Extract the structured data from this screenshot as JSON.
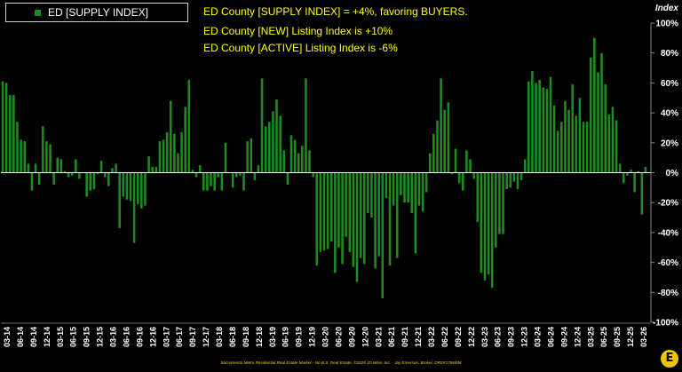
{
  "chart_data": {
    "type": "bar",
    "title": "",
    "ylabel": "Index",
    "xlabel": "",
    "ylim": [
      -100,
      100
    ],
    "y_ticks": [
      "100%",
      "80%",
      "60%",
      "40%",
      "20%",
      "0%",
      "-20%",
      "-40%",
      "-60%",
      "-80%",
      "-100%"
    ],
    "grid": false,
    "legend_position": "top-left",
    "bar_color": "#1e8c1e",
    "background_color": "#000000",
    "axis_color": "#ffffff",
    "annotation_color": "#ffff00",
    "series": [
      {
        "name": "ED [SUPPLY INDEX]",
        "values": [
          61,
          60,
          52,
          52,
          34,
          22,
          21,
          6,
          -12,
          6,
          -8,
          31,
          21,
          19,
          -8,
          10,
          9,
          1,
          -3,
          -2,
          9,
          -4,
          0,
          -16,
          -12,
          -11,
          -1,
          8,
          -3,
          -9,
          3,
          6,
          -37,
          -16,
          -18,
          -19,
          -47,
          -21,
          -24,
          -22,
          11,
          4,
          4,
          21,
          22,
          27,
          48,
          26,
          13,
          27,
          44,
          62,
          2,
          -3,
          5,
          -12,
          -12,
          -9,
          -12,
          -3,
          -12,
          20,
          0,
          -10,
          -3,
          -2,
          -12,
          21,
          23,
          -5,
          5,
          63,
          31,
          34,
          41,
          49,
          38,
          15,
          -8,
          25,
          22,
          13,
          18,
          63,
          15,
          -3,
          -62,
          -53,
          -52,
          -51,
          -46,
          -67,
          -50,
          -61,
          -43,
          -53,
          -63,
          -73,
          -57,
          -61,
          -27,
          -30,
          -64,
          -56,
          -84,
          -17,
          -62,
          -22,
          -57,
          -15,
          -20,
          -20,
          -27,
          -54,
          -22,
          -26,
          -13,
          13,
          26,
          35,
          63,
          42,
          47,
          -1,
          16,
          -7,
          -12,
          15,
          9,
          -4,
          -33,
          -67,
          -72,
          -68,
          -77,
          -50,
          -41,
          -41,
          -11,
          -10,
          -6,
          -11,
          -5,
          9,
          61,
          68,
          60,
          62,
          57,
          56,
          64,
          45,
          28,
          34,
          48,
          42,
          59,
          38,
          50,
          34,
          34,
          77,
          90,
          67,
          80,
          59,
          39,
          44,
          35,
          6,
          -7,
          -2,
          2,
          -13,
          1,
          -28,
          4
        ]
      }
    ],
    "x_tick_labels": [
      "03-14",
      "06-14",
      "09-14",
      "12-14",
      "03-15",
      "06-15",
      "09-15",
      "12-15",
      "03-16",
      "06-16",
      "09-16",
      "12-16",
      "03-17",
      "06-17",
      "09-17",
      "12-17",
      "03-18",
      "06-18",
      "09-18",
      "12-18",
      "03-19",
      "06-19",
      "09-19",
      "12-19",
      "03-20",
      "06-20",
      "09-20",
      "12-20",
      "03-21",
      "06-21",
      "09-21",
      "12-21",
      "03-22",
      "06-22",
      "09-22",
      "12-22",
      "03-23",
      "06-23",
      "09-23",
      "12-23",
      "03-24",
      "06-24",
      "09-24",
      "12-24",
      "03-25",
      "06-25",
      "09-25",
      "12-25",
      "03-26"
    ],
    "annotations": [
      "ED County [SUPPLY INDEX] = +4%, favoring BUYERS.",
      "ED County [NEW] Listing Index is +10%",
      "ED County [ACTIVE] Listing Index is -6%"
    ]
  },
  "footer_text": "Sacramento Metro Residential Real Estate Market - No B.S. Real Estate, ©2026 JD Wise, Inc. - Jay Emerson, Broker, DRE#1786488",
  "logo_letter": "E"
}
